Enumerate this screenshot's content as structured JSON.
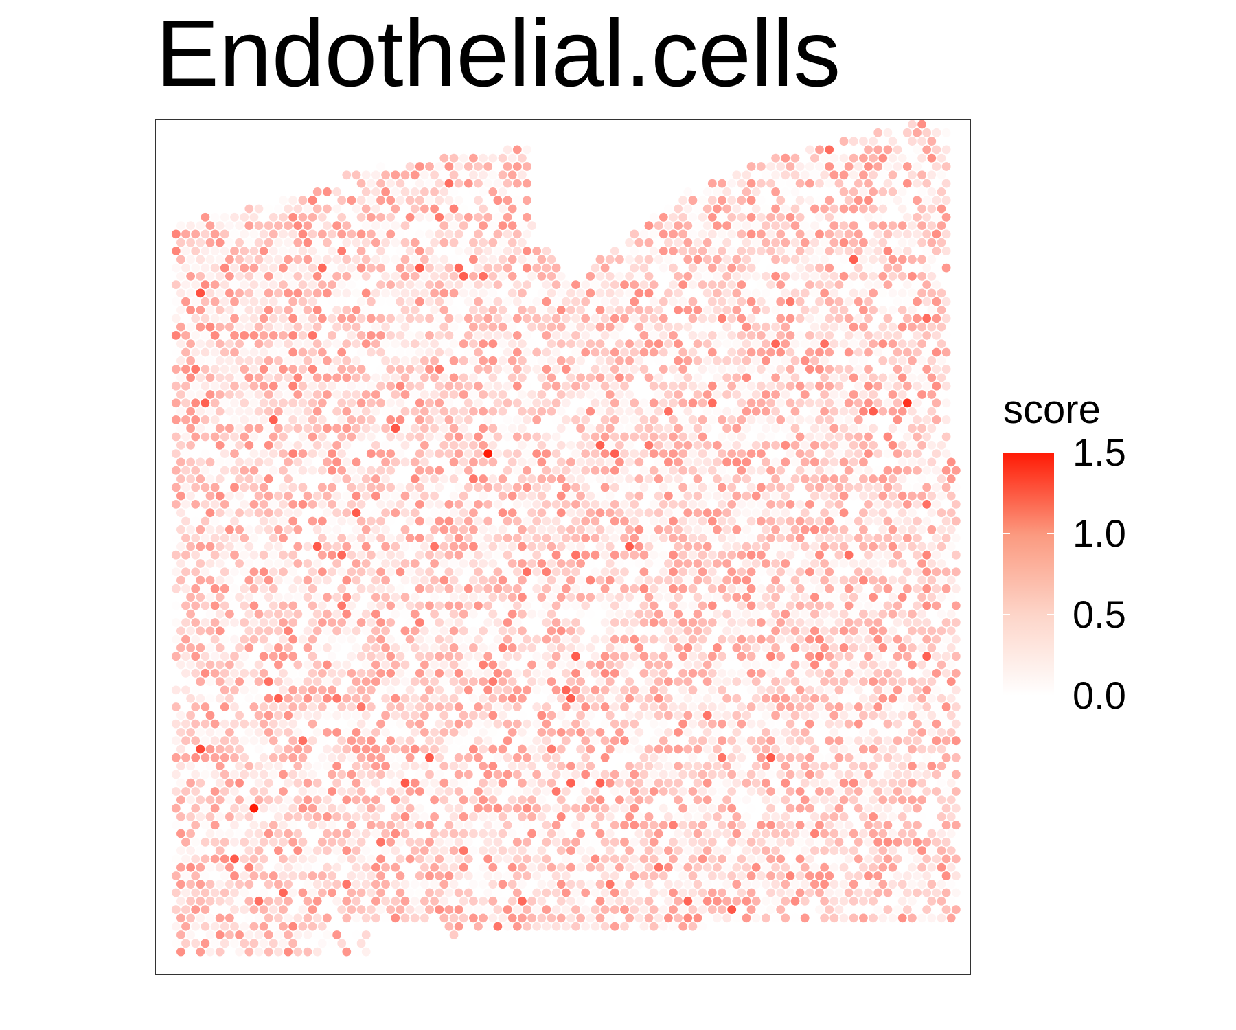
{
  "chart_data": {
    "type": "scatter",
    "title": "Endothelial.cells",
    "xlabel": "",
    "ylabel": "",
    "grid": false,
    "legend": {
      "title": "score",
      "position": "right",
      "type": "colorbar",
      "ticks": [
        "0.0",
        "0.5",
        "1.0",
        "1.5"
      ],
      "range": [
        0,
        1.5
      ],
      "colors": {
        "low": "#ffffff",
        "high": "#ff1a05"
      }
    },
    "marker_color": "#ff1a05",
    "notable_points": [
      {
        "x": 0.12,
        "y": 0.81,
        "score": 1.5
      },
      {
        "x": 0.41,
        "y": 0.39,
        "score": 1.5
      },
      {
        "x": 0.92,
        "y": 0.33,
        "score": 1.35
      },
      {
        "x": 0.06,
        "y": 0.74,
        "score": 1.2
      },
      {
        "x": 0.29,
        "y": 0.36,
        "score": 1.1
      },
      {
        "x": 0.55,
        "y": 0.38,
        "score": 1.05
      }
    ]
  }
}
